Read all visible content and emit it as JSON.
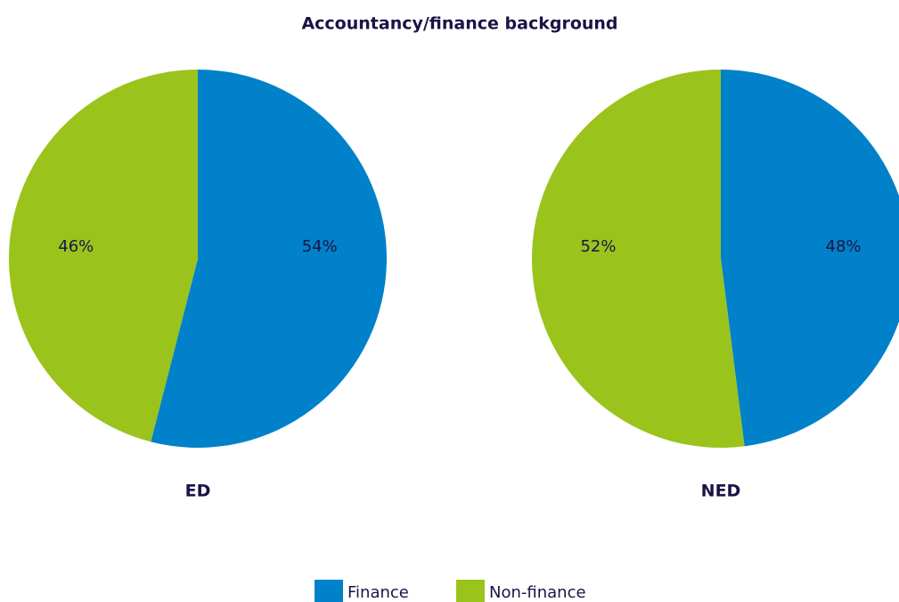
{
  "title": "Accountancy/finance background",
  "chart_data": [
    {
      "type": "pie",
      "label": "ED",
      "categories": [
        "Finance",
        "Non-finance"
      ],
      "values": [
        54,
        46
      ],
      "value_labels": [
        "54%",
        "46%"
      ],
      "colors": [
        "#0081c9",
        "#9ac31c"
      ]
    },
    {
      "type": "pie",
      "label": "NED",
      "categories": [
        "Finance",
        "Non-finance"
      ],
      "values": [
        48,
        52
      ],
      "value_labels": [
        "48%",
        "52%"
      ],
      "colors": [
        "#0081c9",
        "#9ac31c"
      ]
    }
  ]
}
